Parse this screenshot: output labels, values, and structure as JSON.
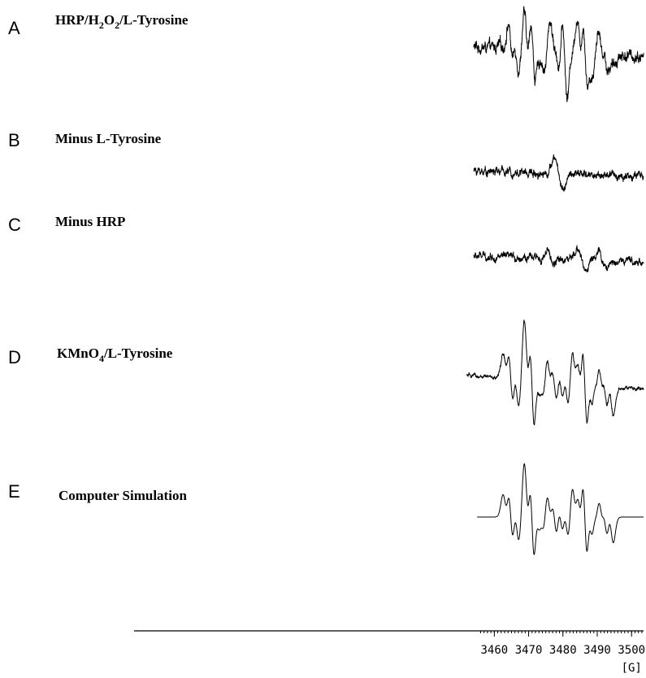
{
  "chart_data": {
    "type": "line",
    "xlabel": "[G]",
    "xlim": [
      3355,
      3503.5
    ],
    "xticks": [
      3460,
      3470,
      3480,
      3490,
      3500
    ],
    "minor_step": 1,
    "panels": [
      {
        "letter": "A",
        "label_parts": [
          "HRP/H",
          "2",
          "O",
          "2",
          "/L-Tyrosine"
        ],
        "noise": 0.09,
        "field_range": [
          3454,
          3503.5
        ],
        "lines": [
          {
            "pos": 3462.6,
            "amp": 0.05,
            "w": 0.9
          },
          {
            "pos": 3464.8,
            "amp": 0.5,
            "w": 0.75
          },
          {
            "pos": 3466.5,
            "amp": 0.4,
            "w": 0.75
          },
          {
            "pos": 3469.4,
            "amp": 0.7,
            "w": 0.75
          },
          {
            "pos": 3471.2,
            "amp": 1.0,
            "w": 0.75
          },
          {
            "pos": 3472.6,
            "amp": 0.45,
            "w": 0.75
          },
          {
            "pos": 3474.0,
            "amp": 0.35,
            "w": 0.75
          },
          {
            "pos": 3477.0,
            "amp": 0.55,
            "w": 0.8
          },
          {
            "pos": 3478.5,
            "amp": 0.55,
            "w": 0.8
          },
          {
            "pos": 3480.5,
            "amp": 0.85,
            "w": 0.75
          },
          {
            "pos": 3484.8,
            "amp": 0.6,
            "w": 0.75
          },
          {
            "pos": 3486.5,
            "amp": 1.0,
            "w": 0.75
          },
          {
            "pos": 3488.0,
            "amp": 0.4,
            "w": 0.75
          },
          {
            "pos": 3491.0,
            "amp": 0.45,
            "w": 0.8
          },
          {
            "pos": 3492.5,
            "amp": 0.45,
            "w": 0.75
          },
          {
            "pos": 3494.0,
            "amp": 0.2,
            "w": 0.8
          }
        ]
      },
      {
        "letter": "B",
        "label_parts": [
          "Minus L-Tyrosine"
        ],
        "noise": 0.1,
        "field_range": [
          3454,
          3503.5
        ],
        "lines": [
          {
            "pos": 3478.8,
            "amp": 0.45,
            "w": 1.2
          }
        ]
      },
      {
        "letter": "C",
        "label_parts": [
          "Minus HRP"
        ],
        "noise": 0.1,
        "field_range": [
          3454,
          3503.5
        ],
        "lines": [
          {
            "pos": 3476.5,
            "amp": 0.2,
            "w": 0.9
          },
          {
            "pos": 3485.5,
            "amp": 0.35,
            "w": 1.0
          },
          {
            "pos": 3491.5,
            "amp": 0.25,
            "w": 1.2
          }
        ]
      },
      {
        "letter": "D",
        "label_parts": [
          "KMnO",
          "4",
          "/L-Tyrosine"
        ],
        "noise": 0.02,
        "field_range": [
          3452,
          3503.5
        ],
        "lines": [
          {
            "pos": 3463.2,
            "amp": 0.3,
            "w": 0.75
          },
          {
            "pos": 3464.8,
            "amp": 0.55,
            "w": 0.75
          },
          {
            "pos": 3466.5,
            "amp": 0.35,
            "w": 0.75
          },
          {
            "pos": 3469.4,
            "amp": 0.75,
            "w": 0.75
          },
          {
            "pos": 3471.0,
            "amp": 1.0,
            "w": 0.75
          },
          {
            "pos": 3472.6,
            "amp": 0.5,
            "w": 0.75
          },
          {
            "pos": 3474.0,
            "amp": 0.35,
            "w": 0.75
          },
          {
            "pos": 3475.9,
            "amp": 0.45,
            "w": 0.8
          },
          {
            "pos": 3477.6,
            "amp": 0.55,
            "w": 0.85
          },
          {
            "pos": 3479.4,
            "amp": 0.45,
            "w": 0.75
          },
          {
            "pos": 3481.0,
            "amp": 0.35,
            "w": 0.75
          },
          {
            "pos": 3483.3,
            "amp": 0.45,
            "w": 0.75
          },
          {
            "pos": 3484.8,
            "amp": 0.65,
            "w": 0.75
          },
          {
            "pos": 3486.4,
            "amp": 1.0,
            "w": 0.75
          },
          {
            "pos": 3488.0,
            "amp": 0.55,
            "w": 0.75
          },
          {
            "pos": 3489.5,
            "amp": 0.35,
            "w": 0.75
          },
          {
            "pos": 3491.0,
            "amp": 0.5,
            "w": 0.75
          },
          {
            "pos": 3492.4,
            "amp": 0.5,
            "w": 0.75
          },
          {
            "pos": 3494.0,
            "amp": 0.35,
            "w": 0.75
          }
        ]
      },
      {
        "letter": "E",
        "label_parts": [
          "Computer Simulation"
        ],
        "noise": 0,
        "field_range": [
          3455,
          3503.5
        ],
        "lines": [
          {
            "pos": 3463.2,
            "amp": 0.3,
            "w": 0.75
          },
          {
            "pos": 3464.8,
            "amp": 0.55,
            "w": 0.75
          },
          {
            "pos": 3466.5,
            "amp": 0.35,
            "w": 0.75
          },
          {
            "pos": 3469.4,
            "amp": 0.75,
            "w": 0.75
          },
          {
            "pos": 3471.0,
            "amp": 1.0,
            "w": 0.75
          },
          {
            "pos": 3472.6,
            "amp": 0.5,
            "w": 0.75
          },
          {
            "pos": 3474.0,
            "amp": 0.35,
            "w": 0.75
          },
          {
            "pos": 3475.9,
            "amp": 0.45,
            "w": 0.8
          },
          {
            "pos": 3477.6,
            "amp": 0.55,
            "w": 0.85
          },
          {
            "pos": 3479.4,
            "amp": 0.45,
            "w": 0.75
          },
          {
            "pos": 3481.0,
            "amp": 0.35,
            "w": 0.75
          },
          {
            "pos": 3483.3,
            "amp": 0.45,
            "w": 0.75
          },
          {
            "pos": 3484.8,
            "amp": 0.65,
            "w": 0.75
          },
          {
            "pos": 3486.4,
            "amp": 1.0,
            "w": 0.75
          },
          {
            "pos": 3488.0,
            "amp": 0.55,
            "w": 0.75
          },
          {
            "pos": 3489.5,
            "amp": 0.35,
            "w": 0.75
          },
          {
            "pos": 3491.0,
            "amp": 0.5,
            "w": 0.75
          },
          {
            "pos": 3492.4,
            "amp": 0.5,
            "w": 0.75
          },
          {
            "pos": 3494.0,
            "amp": 0.35,
            "w": 0.75
          }
        ]
      }
    ]
  }
}
